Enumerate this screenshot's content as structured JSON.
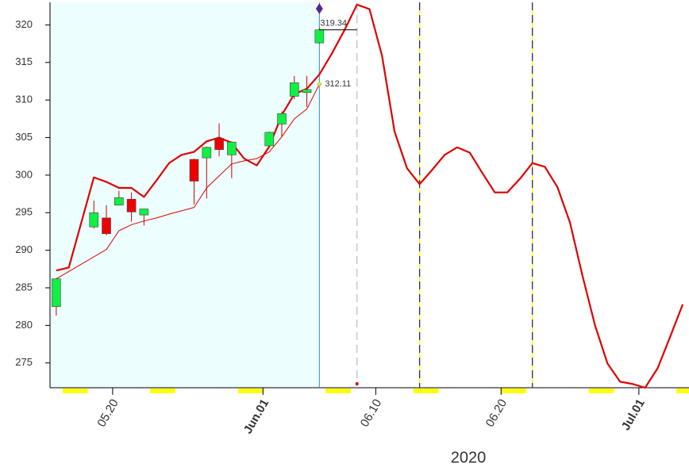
{
  "chart_data": {
    "type": "candlestick",
    "xlim": [
      "2020-05-15",
      "2020-07-05"
    ],
    "ylim": [
      271.7,
      323
    ],
    "yticks": [
      275,
      280,
      285,
      290,
      295,
      300,
      305,
      310,
      315,
      320
    ],
    "xticks": [
      {
        "value": "2020-05-20",
        "label": "05.20"
      },
      {
        "value": "2020-06-01",
        "label": "Jun.01"
      },
      {
        "value": "2020-06-10",
        "label": "06.10"
      },
      {
        "value": "2020-06-20",
        "label": "06.20"
      },
      {
        "value": "2020-07-01",
        "label": "Jul.01"
      }
    ],
    "year_label": "2020",
    "tick_color": "#555555",
    "month_tick_color": "#8b0000",
    "year_color": "#0000dd",
    "history_end": "2020-06-05",
    "history_shade": "#edfefe",
    "history_line_color": "#2a8fd0",
    "weekend_color": "#ffff00",
    "up_color": "#11ee44",
    "down_color": "#ee0000",
    "wick_color": "#cc0000",
    "candles": {
      "x": [
        "2020-05-15",
        "2020-05-18",
        "2020-05-19",
        "2020-05-20",
        "2020-05-21",
        "2020-05-22",
        "2020-05-26",
        "2020-05-27",
        "2020-05-28",
        "2020-05-29",
        "2020-06-01",
        "2020-06-02",
        "2020-06-03",
        "2020-06-04",
        "2020-06-05"
      ],
      "open": [
        282.5,
        293.1,
        294.3,
        296.0,
        296.8,
        294.7,
        302.1,
        302.3,
        304.9,
        302.7,
        303.9,
        306.8,
        310.5,
        311.0,
        317.6
      ],
      "high": [
        286.3,
        296.6,
        296.0,
        297.9,
        297.7,
        295.5,
        302.2,
        303.8,
        306.9,
        304.5,
        305.8,
        308.5,
        313.2,
        313.2,
        319.6
      ],
      "low": [
        281.3,
        292.9,
        292.0,
        296.0,
        293.8,
        293.3,
        296.1,
        296.9,
        302.5,
        299.6,
        303.8,
        305.1,
        310.1,
        309.1,
        317.5
      ],
      "close": [
        286.2,
        295.0,
        292.2,
        297.0,
        295.1,
        295.5,
        299.2,
        303.7,
        303.4,
        304.4,
        305.7,
        308.2,
        312.3,
        311.4,
        319.34
      ]
    },
    "series": [
      {
        "color": "#e00000",
        "width": 2.2,
        "x": [
          "2020-05-15",
          "2020-05-16",
          "2020-05-17",
          "2020-05-18",
          "2020-05-19",
          "2020-05-20",
          "2020-05-21",
          "2020-05-22",
          "2020-05-23",
          "2020-05-24",
          "2020-05-25",
          "2020-05-26",
          "2020-05-27",
          "2020-05-28",
          "2020-05-29",
          "2020-05-30",
          "2020-05-31",
          "2020-06-01",
          "2020-06-02",
          "2020-06-03",
          "2020-06-04",
          "2020-06-05",
          "2020-06-06",
          "2020-06-07",
          "2020-06-08",
          "2020-06-09",
          "2020-06-10",
          "2020-06-11",
          "2020-06-12",
          "2020-06-13",
          "2020-06-14",
          "2020-06-15",
          "2020-06-16",
          "2020-06-17",
          "2020-06-18",
          "2020-06-19",
          "2020-06-20",
          "2020-06-21",
          "2020-06-22",
          "2020-06-23",
          "2020-06-24",
          "2020-06-25",
          "2020-06-26",
          "2020-06-27",
          "2020-06-28",
          "2020-06-29",
          "2020-06-30",
          "2020-07-01",
          "2020-07-02",
          "2020-07-03",
          "2020-07-04"
        ],
        "values": [
          287.3,
          287.7,
          293.7,
          299.7,
          299.1,
          298.3,
          298.3,
          297.1,
          299.3,
          301.6,
          302.7,
          303.1,
          304.5,
          305.0,
          304.3,
          302.2,
          301.3,
          303.8,
          308.0,
          310.8,
          311.5,
          313.4,
          316.2,
          319.3,
          322.7,
          322.1,
          315.9,
          305.8,
          300.9,
          298.8,
          300.7,
          302.7,
          303.7,
          303.0,
          300.3,
          297.7,
          297.7,
          299.5,
          301.6,
          301.1,
          298.4,
          293.7,
          286.6,
          280.0,
          274.9,
          272.5,
          272.2,
          271.7,
          274.3,
          278.5,
          282.8
        ]
      },
      {
        "color": "#dd0000",
        "width": 1,
        "x": [
          "2020-05-15",
          "2020-05-19",
          "2020-05-20",
          "2020-05-21",
          "2020-05-22",
          "2020-05-23",
          "2020-05-24",
          "2020-05-26",
          "2020-05-27",
          "2020-05-28",
          "2020-05-29",
          "2020-05-30",
          "2020-05-31",
          "2020-06-01",
          "2020-06-02",
          "2020-06-03",
          "2020-06-04",
          "2020-06-05"
        ],
        "values": [
          286.2,
          290.1,
          292.6,
          293.4,
          293.9,
          294.3,
          294.8,
          295.7,
          298.3,
          299.9,
          301.5,
          301.9,
          302.2,
          303.1,
          305.1,
          307.5,
          308.8,
          312.11
        ]
      }
    ],
    "markers": [
      {
        "x": "2020-06-08",
        "color": "#bbbbbb",
        "dash": "10 6"
      },
      {
        "x": "2020-06-13",
        "color": "#1a1a8c",
        "dash": "10 6"
      },
      {
        "x": "2020-06-22",
        "color": "#1a1a8c",
        "dash": "10 6"
      }
    ]
  }
}
